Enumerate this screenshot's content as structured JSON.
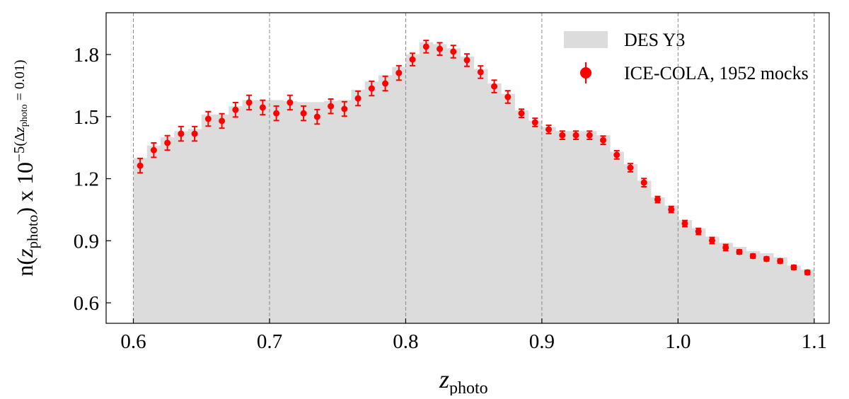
{
  "chart_data": {
    "type": "histogram",
    "xlabel": [
      "z",
      "photo"
    ],
    "ylabel": [
      "n(",
      "z",
      "photo",
      ") x 10",
      "−5"
    ],
    "ylabel_note": [
      "(Δ",
      "z",
      "photo",
      " = 0.01)"
    ],
    "bins": [
      0.6,
      0.61,
      0.62,
      0.63,
      0.64,
      0.65,
      0.66,
      0.67,
      0.68,
      0.69,
      0.7,
      0.71,
      0.72,
      0.73,
      0.74,
      0.75,
      0.76,
      0.77,
      0.78,
      0.79,
      0.8,
      0.81,
      0.82,
      0.83,
      0.84,
      0.85,
      0.86,
      0.87,
      0.88,
      0.89,
      0.9,
      0.91,
      0.92,
      0.93,
      0.94,
      0.95,
      0.96,
      0.97,
      0.98,
      0.99,
      1.0,
      1.01,
      1.02,
      1.03,
      1.04,
      1.05,
      1.06,
      1.07,
      1.08,
      1.09,
      1.1
    ],
    "series": [
      {
        "name": "DES Y3",
        "type": "histogram",
        "color": "#dcdcdc",
        "values": [
          1.3,
          1.36,
          1.4,
          1.43,
          1.44,
          1.51,
          1.51,
          1.55,
          1.58,
          1.58,
          1.58,
          1.575,
          1.57,
          1.57,
          1.575,
          1.58,
          1.63,
          1.67,
          1.7,
          1.74,
          1.8,
          1.86,
          1.85,
          1.83,
          1.79,
          1.73,
          1.66,
          1.61,
          1.53,
          1.48,
          1.45,
          1.43,
          1.43,
          1.43,
          1.41,
          1.33,
          1.27,
          1.19,
          1.11,
          1.07,
          1.0,
          0.96,
          0.92,
          0.89,
          0.87,
          0.85,
          0.84,
          0.82,
          0.78,
          0.76
        ]
      },
      {
        "name": "ICE-COLA, 1952 mocks",
        "type": "errorbar",
        "color": "#ff0000",
        "x": [
          0.605,
          0.615,
          0.625,
          0.635,
          0.645,
          0.655,
          0.665,
          0.675,
          0.685,
          0.695,
          0.705,
          0.715,
          0.725,
          0.735,
          0.745,
          0.755,
          0.765,
          0.775,
          0.785,
          0.795,
          0.805,
          0.815,
          0.825,
          0.835,
          0.845,
          0.855,
          0.865,
          0.875,
          0.885,
          0.895,
          0.905,
          0.915,
          0.925,
          0.935,
          0.945,
          0.955,
          0.965,
          0.975,
          0.985,
          0.995,
          1.005,
          1.015,
          1.025,
          1.035,
          1.045,
          1.055,
          1.065,
          1.075,
          1.085,
          1.095
        ],
        "values": [
          1.263,
          1.338,
          1.373,
          1.417,
          1.417,
          1.489,
          1.479,
          1.533,
          1.568,
          1.544,
          1.516,
          1.568,
          1.516,
          1.499,
          1.55,
          1.537,
          1.588,
          1.636,
          1.66,
          1.711,
          1.776,
          1.838,
          1.827,
          1.814,
          1.773,
          1.715,
          1.646,
          1.595,
          1.516,
          1.472,
          1.438,
          1.41,
          1.41,
          1.41,
          1.386,
          1.315,
          1.253,
          1.181,
          1.099,
          1.051,
          0.983,
          0.945,
          0.901,
          0.867,
          0.846,
          0.826,
          0.812,
          0.802,
          0.771,
          0.747
        ],
        "errors": [
          0.035,
          0.035,
          0.035,
          0.035,
          0.035,
          0.035,
          0.035,
          0.035,
          0.035,
          0.035,
          0.035,
          0.035,
          0.035,
          0.035,
          0.035,
          0.035,
          0.035,
          0.035,
          0.035,
          0.035,
          0.03,
          0.03,
          0.03,
          0.03,
          0.03,
          0.03,
          0.03,
          0.03,
          0.02,
          0.02,
          0.02,
          0.02,
          0.02,
          0.02,
          0.02,
          0.02,
          0.02,
          0.02,
          0.015,
          0.015,
          0.015,
          0.015,
          0.015,
          0.015,
          0.01,
          0.01,
          0.01,
          0.01,
          0.01,
          0.01
        ]
      }
    ],
    "xlim": [
      0.58,
      1.111
    ],
    "ylim": [
      0.501,
      2.002
    ],
    "xticks": [
      0.6,
      0.7,
      0.8,
      0.9,
      {
        "value": 1,
        "label": "1.0"
      },
      1.1
    ],
    "yticks": [
      0.6,
      0.9,
      1.2,
      1.5,
      1.8
    ],
    "grid": "x",
    "legend": "upper right"
  }
}
